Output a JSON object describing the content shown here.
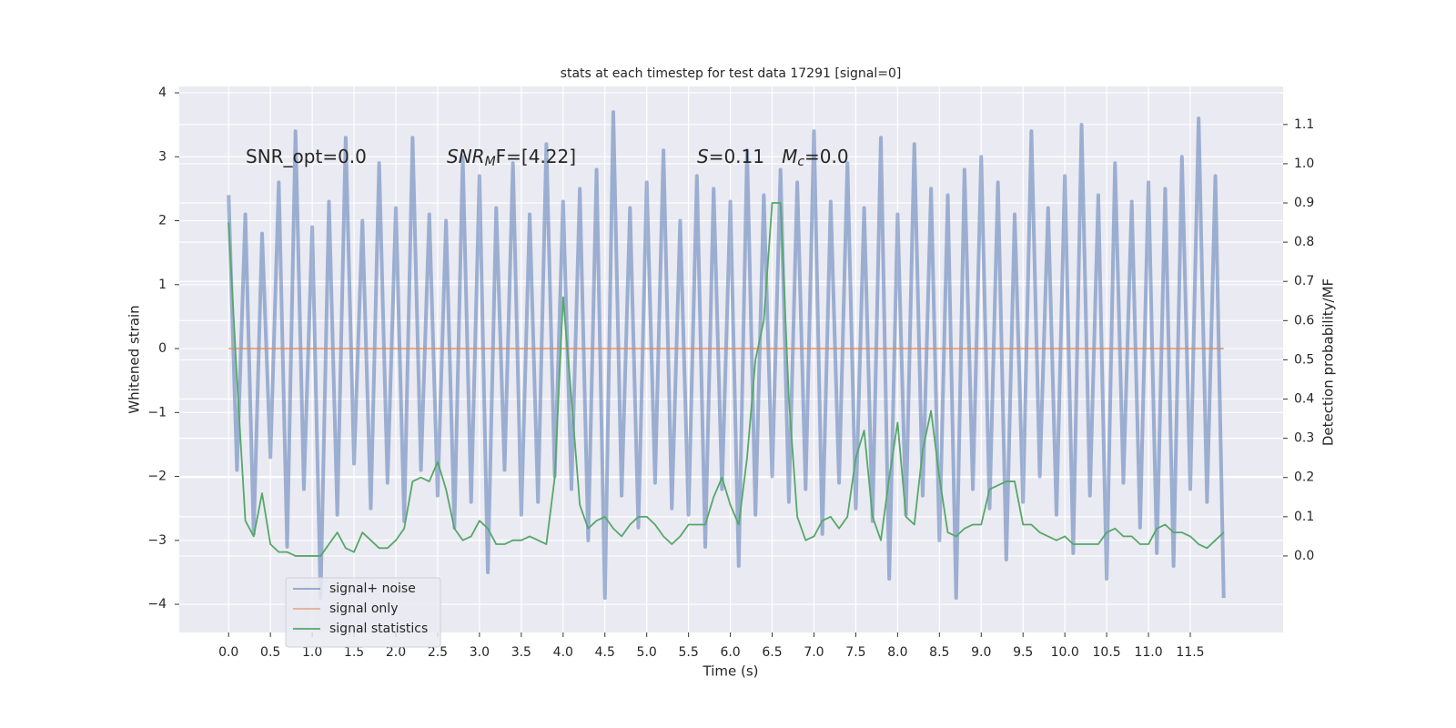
{
  "chart_data": {
    "type": "line",
    "title": "stats at each timestep for test data 17291 [signal=0]",
    "xlabel": "Time (s)",
    "ylabel": "Whitened strain",
    "y2label": "Detection probability/MF",
    "annotations": [
      [
        {
          "text": "SNR_opt=0.0",
          "style": "normal"
        }
      ],
      [
        {
          "text": "SNR",
          "style": "italic"
        },
        {
          "text": "M",
          "style": "sub"
        },
        {
          "text": "F=[4.22]",
          "style": "normal"
        }
      ],
      [
        {
          "text": "S",
          "style": "italic"
        },
        {
          "text": "=0.11   ",
          "style": "normal"
        },
        {
          "text": "M",
          "style": "italic"
        },
        {
          "text": "c",
          "style": "sub"
        },
        {
          "text": "=0.0",
          "style": "normal"
        }
      ]
    ],
    "xlim": [
      -0.59,
      12.61
    ],
    "ylim": [
      -4.44,
      4.1
    ],
    "y2lim": [
      -0.195,
      1.197
    ],
    "xticks": [
      {
        "value": 0,
        "label": "0.0"
      },
      0.5,
      {
        "value": 1,
        "label": "1.0"
      },
      1.5,
      {
        "value": 2,
        "label": "2.0"
      },
      2.5,
      {
        "value": 3,
        "label": "3.0"
      },
      3.5,
      {
        "value": 4,
        "label": "4.0"
      },
      4.5,
      {
        "value": 5,
        "label": "5.0"
      },
      5.5,
      {
        "value": 6,
        "label": "6.0"
      },
      6.5,
      {
        "value": 7,
        "label": "7.0"
      },
      7.5,
      {
        "value": 8,
        "label": "8.0"
      },
      8.5,
      {
        "value": 9,
        "label": "9.0"
      },
      9.5,
      {
        "value": 10,
        "label": "10.0"
      },
      10.5,
      {
        "value": 11,
        "label": "11.0"
      },
      11.5
    ],
    "yticks": [
      {
        "value": -4,
        "label": "−4"
      },
      {
        "value": -3,
        "label": "−3"
      },
      {
        "value": -2,
        "label": "−2"
      },
      {
        "value": -1,
        "label": "−1"
      },
      0,
      1,
      2,
      3,
      4
    ],
    "y2ticks": [
      {
        "value": 0,
        "label": "0.0"
      },
      0.1,
      0.2,
      0.3,
      0.4,
      0.5,
      0.6,
      0.7,
      0.8,
      0.9,
      {
        "value": 1,
        "label": "1.0"
      },
      1.1
    ],
    "grid": true,
    "legend": "lower left",
    "x": [
      0,
      0.1,
      0.2,
      0.3,
      0.4,
      0.5,
      0.6,
      0.7,
      0.8,
      0.9,
      1,
      1.1,
      1.2,
      1.3,
      1.4,
      1.5,
      1.6,
      1.7,
      1.8,
      1.9,
      2,
      2.1,
      2.2,
      2.3,
      2.4,
      2.5,
      2.6,
      2.7,
      2.8,
      2.9,
      3,
      3.1,
      3.2,
      3.3,
      3.4,
      3.5,
      3.6,
      3.7,
      3.8,
      3.9,
      4,
      4.1,
      4.2,
      4.3,
      4.4,
      4.5,
      4.6,
      4.7,
      4.8,
      4.9,
      5,
      5.1,
      5.2,
      5.3,
      5.4,
      5.5,
      5.6,
      5.7,
      5.8,
      5.9,
      6,
      6.1,
      6.2,
      6.3,
      6.4,
      6.5,
      6.6,
      6.7,
      6.8,
      6.9,
      7,
      7.1,
      7.2,
      7.3,
      7.4,
      7.5,
      7.6,
      7.7,
      7.8,
      7.9,
      8,
      8.1,
      8.2,
      8.3,
      8.4,
      8.5,
      8.6,
      8.7,
      8.8,
      8.9,
      9,
      9.1,
      9.2,
      9.3,
      9.4,
      9.5,
      9.6,
      9.7,
      9.8,
      9.9,
      10,
      10.1,
      10.2,
      10.3,
      10.4,
      10.5,
      10.6,
      10.7,
      10.8,
      10.9,
      11,
      11.1,
      11.2,
      11.3,
      11.4,
      11.5,
      11.6,
      11.7,
      11.8,
      11.9
    ],
    "series": [
      {
        "name": "signal+ noise",
        "color": "#4c72b0",
        "axis": "y",
        "values": [
          2.4,
          -1.9,
          2.1,
          -2.9,
          1.8,
          -1.7,
          2.6,
          -3.1,
          3.4,
          -2.2,
          1.9,
          -3.9,
          2.3,
          -2.6,
          3.3,
          -1.8,
          2.0,
          -2.5,
          2.9,
          -2.1,
          2.2,
          -2.7,
          3.3,
          -1.9,
          2.1,
          -2.3,
          2.0,
          -2.8,
          3.0,
          -2.4,
          2.7,
          -3.5,
          2.2,
          -1.9,
          2.9,
          -2.6,
          2.1,
          -2.4,
          3.2,
          -2.0,
          2.3,
          -2.2,
          2.5,
          -3.0,
          2.8,
          -3.9,
          3.7,
          -2.3,
          2.2,
          -2.8,
          2.6,
          -2.1,
          3.1,
          -2.5,
          2.0,
          -2.6,
          2.7,
          -3.1,
          2.5,
          -2.2,
          2.3,
          -3.4,
          3.1,
          -2.6,
          2.4,
          -2.0,
          2.8,
          -2.4,
          2.6,
          -2.2,
          3.4,
          -2.9,
          2.3,
          -2.1,
          2.9,
          -2.5,
          2.2,
          -2.7,
          3.3,
          -3.6,
          2.1,
          -2.6,
          3.2,
          -2.3,
          2.5,
          -3.0,
          2.4,
          -3.9,
          2.8,
          -2.2,
          3.0,
          -2.5,
          2.6,
          -3.3,
          2.1,
          -2.4,
          3.4,
          -2.0,
          2.2,
          -2.6,
          2.7,
          -3.2,
          3.5,
          -2.3,
          2.4,
          -3.6,
          2.9,
          -2.1,
          2.3,
          -2.8,
          2.6,
          -3.2,
          2.5,
          -3.4,
          3.0,
          -2.2,
          3.6,
          -2.4,
          2.7,
          -3.9
        ]
      },
      {
        "name": "signal only",
        "color": "#dd8452",
        "axis": "y",
        "values": [
          0,
          0,
          0,
          0,
          0,
          0,
          0,
          0,
          0,
          0,
          0,
          0,
          0,
          0,
          0,
          0,
          0,
          0,
          0,
          0,
          0,
          0,
          0,
          0,
          0,
          0,
          0,
          0,
          0,
          0,
          0,
          0,
          0,
          0,
          0,
          0,
          0,
          0,
          0,
          0,
          0,
          0,
          0,
          0,
          0,
          0,
          0,
          0,
          0,
          0,
          0,
          0,
          0,
          0,
          0,
          0,
          0,
          0,
          0,
          0,
          0,
          0,
          0,
          0,
          0,
          0,
          0,
          0,
          0,
          0,
          0,
          0,
          0,
          0,
          0,
          0,
          0,
          0,
          0,
          0,
          0,
          0,
          0,
          0,
          0,
          0,
          0,
          0,
          0,
          0,
          0,
          0,
          0,
          0,
          0,
          0,
          0,
          0,
          0,
          0,
          0,
          0,
          0,
          0,
          0,
          0,
          0,
          0,
          0,
          0,
          0,
          0,
          0,
          0,
          0,
          0,
          0,
          0,
          0,
          0
        ]
      },
      {
        "name": "signal statistics",
        "color": "#55a868",
        "axis": "y2",
        "values": [
          0.85,
          0.45,
          0.09,
          0.05,
          0.16,
          0.03,
          0.01,
          0.01,
          0.0,
          0.0,
          0.0,
          0.0,
          0.03,
          0.06,
          0.02,
          0.01,
          0.06,
          0.04,
          0.02,
          0.02,
          0.04,
          0.07,
          0.19,
          0.2,
          0.19,
          0.24,
          0.17,
          0.07,
          0.04,
          0.05,
          0.09,
          0.07,
          0.03,
          0.03,
          0.04,
          0.04,
          0.05,
          0.04,
          0.03,
          0.2,
          0.66,
          0.4,
          0.13,
          0.07,
          0.09,
          0.1,
          0.07,
          0.05,
          0.08,
          0.1,
          0.1,
          0.08,
          0.05,
          0.03,
          0.05,
          0.08,
          0.08,
          0.08,
          0.15,
          0.2,
          0.13,
          0.08,
          0.25,
          0.5,
          0.6,
          0.9,
          0.9,
          0.4,
          0.1,
          0.04,
          0.05,
          0.09,
          0.1,
          0.07,
          0.1,
          0.25,
          0.32,
          0.1,
          0.04,
          0.2,
          0.34,
          0.1,
          0.08,
          0.27,
          0.37,
          0.2,
          0.06,
          0.05,
          0.07,
          0.08,
          0.08,
          0.17,
          0.18,
          0.19,
          0.19,
          0.08,
          0.08,
          0.06,
          0.05,
          0.04,
          0.05,
          0.03,
          0.03,
          0.03,
          0.03,
          0.06,
          0.07,
          0.05,
          0.05,
          0.03,
          0.03,
          0.07,
          0.08,
          0.06,
          0.06,
          0.05,
          0.03,
          0.02,
          0.04,
          0.06
        ]
      }
    ]
  }
}
